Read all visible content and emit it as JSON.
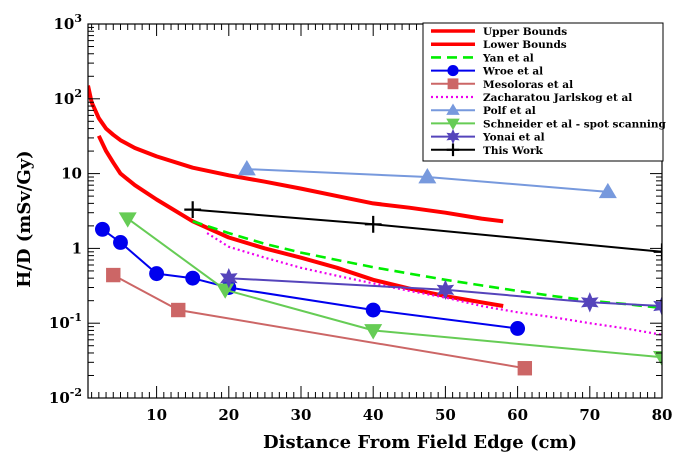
{
  "chart_data": {
    "type": "line",
    "xlabel": "Distance From Field Edge (cm)",
    "ylabel": "H/D (mSv/Gy)",
    "x_range": [
      0.5,
      80
    ],
    "y_range": [
      0.01,
      1000
    ],
    "y_scale": "log",
    "legend_position": "top-right",
    "x_ticks": [
      10,
      20,
      30,
      40,
      50,
      60,
      70,
      80
    ],
    "x_tick_labels": [
      "10",
      "20",
      "30",
      "40",
      "50",
      "60",
      "70",
      "80"
    ],
    "y_ticks": [
      0.01,
      0.1,
      1,
      10,
      100,
      1000
    ],
    "y_tick_labels": [
      {
        "base": "10",
        "exp": "-2"
      },
      {
        "base": "10",
        "exp": "-1"
      },
      {
        "base": "1",
        "exp": ""
      },
      {
        "base": "10",
        "exp": ""
      },
      {
        "base": "10",
        "exp": "2"
      },
      {
        "base": "10",
        "exp": "3"
      }
    ],
    "series": [
      {
        "name": "Upper Bounds",
        "color": "#ff0000",
        "style": "thick",
        "marker": "none",
        "x": [
          0.5,
          1,
          2,
          3,
          4,
          5,
          7,
          10,
          15,
          20,
          25,
          30,
          35,
          40,
          45,
          50,
          55,
          58
        ],
        "y": [
          150,
          90,
          55,
          40,
          33,
          28,
          22,
          17,
          12,
          9.5,
          7.8,
          6.3,
          5,
          4,
          3.5,
          3,
          2.5,
          2.3
        ]
      },
      {
        "name": "Lower Bounds",
        "color": "#ff0000",
        "style": "thick",
        "marker": "none",
        "x": [
          2,
          3,
          4,
          5,
          7,
          10,
          15,
          20,
          25,
          30,
          35,
          40,
          45,
          50,
          55,
          58
        ],
        "y": [
          32,
          20,
          14,
          10,
          7,
          4.5,
          2.3,
          1.4,
          1,
          0.75,
          0.55,
          0.38,
          0.29,
          0.23,
          0.19,
          0.17
        ]
      },
      {
        "name": "Yan et al",
        "color": "#00ee00",
        "style": "dashed",
        "marker": "none",
        "x": [
          15,
          20,
          25,
          30,
          35,
          40,
          45,
          50,
          55,
          60,
          65,
          70,
          75,
          80
        ],
        "y": [
          2.3,
          1.6,
          1.15,
          0.88,
          0.7,
          0.56,
          0.46,
          0.38,
          0.32,
          0.27,
          0.23,
          0.2,
          0.18,
          0.16
        ]
      },
      {
        "name": "Wroe et al",
        "color": "#0000ee",
        "style": "solid",
        "marker": "circle",
        "x": [
          2.5,
          5,
          10,
          15,
          20,
          40,
          60
        ],
        "y": [
          1.8,
          1.2,
          0.46,
          0.4,
          0.3,
          0.15,
          0.085
        ]
      },
      {
        "name": "Mesoloras et al",
        "color": "#cc6666",
        "style": "solid",
        "marker": "square",
        "x": [
          4,
          13,
          61
        ],
        "y": [
          0.44,
          0.15,
          0.025
        ]
      },
      {
        "name": "Zacharatou Jarlskog et al",
        "color": "#ee00ee",
        "style": "dotted",
        "marker": "none",
        "x": [
          17,
          20,
          25,
          30,
          35,
          40,
          45,
          50,
          55,
          60,
          65,
          70,
          75,
          80
        ],
        "y": [
          1.6,
          1.05,
          0.75,
          0.55,
          0.43,
          0.34,
          0.27,
          0.22,
          0.17,
          0.14,
          0.12,
          0.1,
          0.085,
          0.07
        ]
      },
      {
        "name": "Polf et al",
        "color": "#7799dd",
        "style": "solid",
        "marker": "triangle-up",
        "x": [
          22.5,
          47.5,
          72.5
        ],
        "y": [
          11.5,
          9,
          5.7
        ]
      },
      {
        "name": "Schneider et al - spot scanning",
        "color": "#66cc55",
        "style": "solid",
        "marker": "triangle-down",
        "x": [
          6,
          19.5,
          40,
          80
        ],
        "y": [
          2.5,
          0.28,
          0.08,
          0.035
        ]
      },
      {
        "name": "Yonai et al",
        "color": "#5544bb",
        "style": "solid",
        "marker": "star",
        "x": [
          20,
          50,
          70,
          80
        ],
        "y": [
          0.4,
          0.28,
          0.19,
          0.17
        ]
      },
      {
        "name": "This Work",
        "color": "#000000",
        "style": "solid",
        "marker": "cross",
        "x": [
          15,
          40,
          80
        ],
        "y": [
          3.3,
          2.1,
          0.9
        ]
      }
    ]
  }
}
